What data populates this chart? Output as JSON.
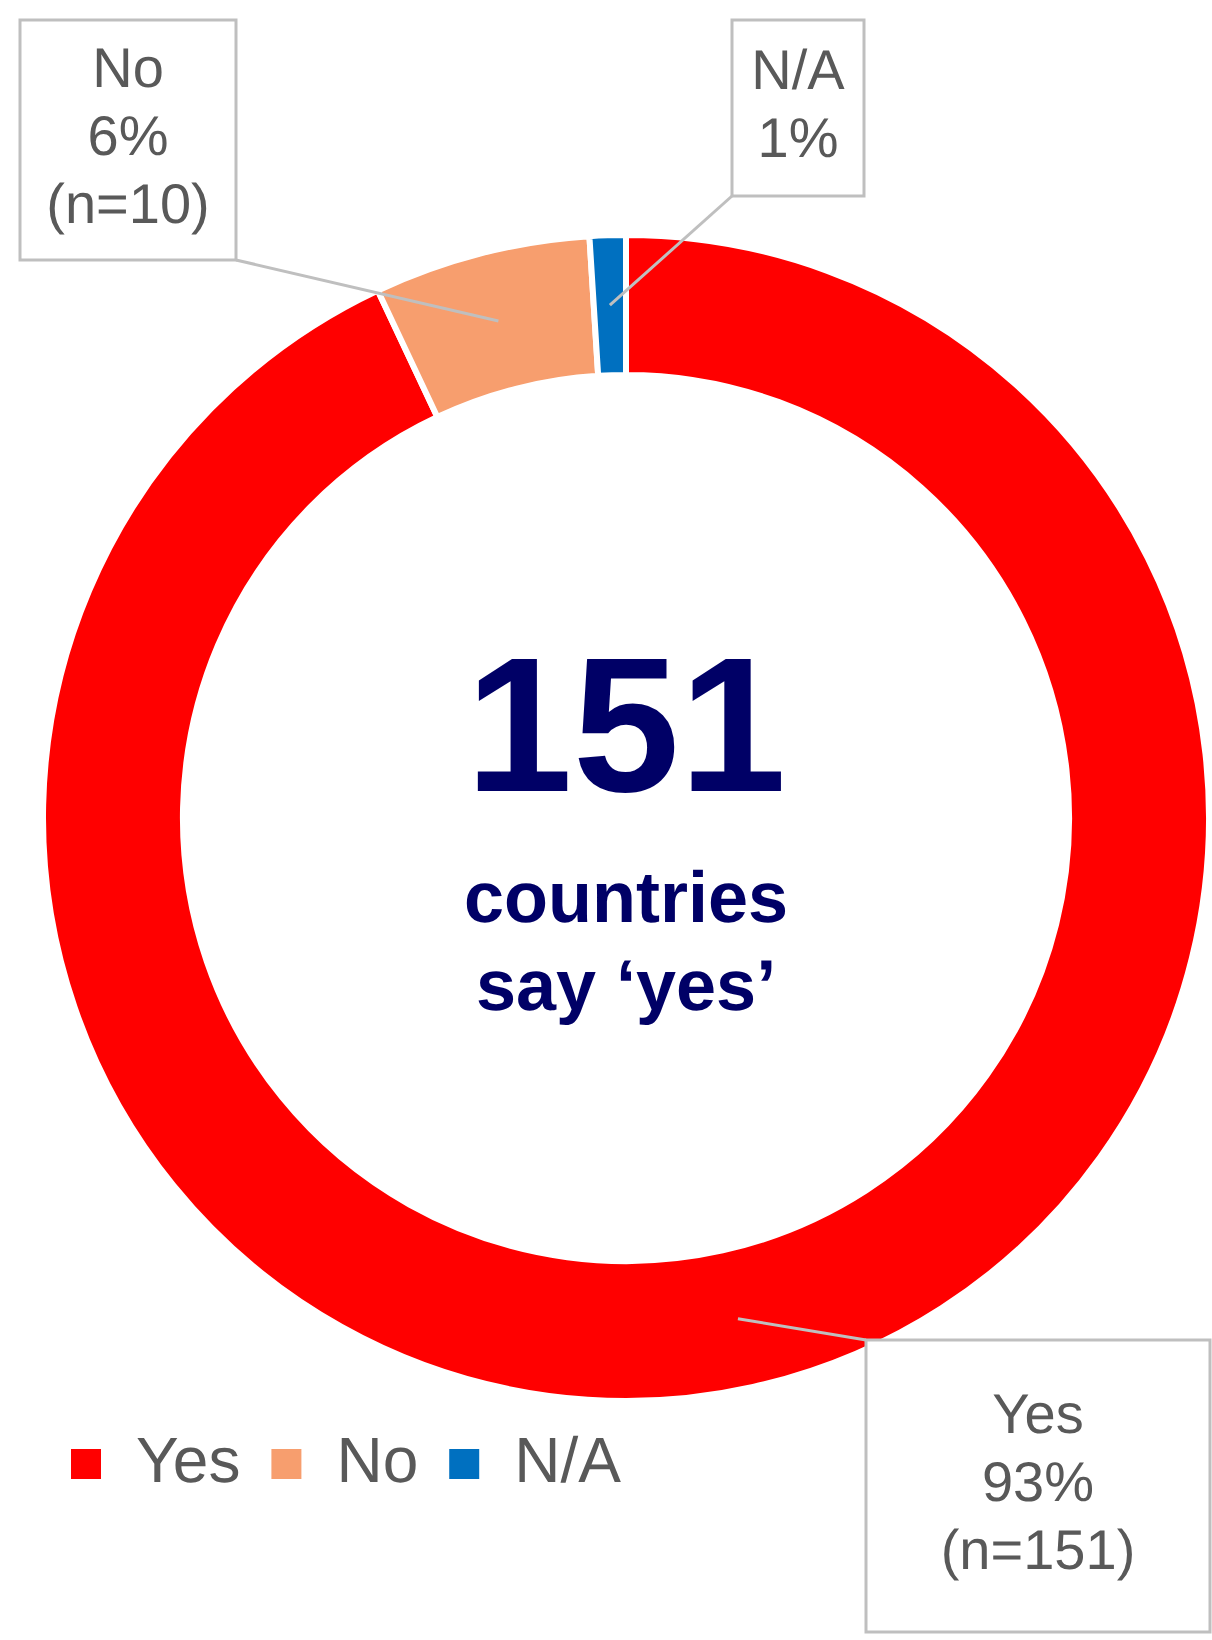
{
  "chart_data": {
    "type": "donut",
    "categories": [
      "Yes",
      "No",
      "N/A"
    ],
    "values": [
      93,
      6,
      1
    ],
    "colors": [
      "#ff0000",
      "#f79e6e",
      "#0070c0"
    ],
    "value_labels": [
      "Yes\n93%\n(n=151)",
      "No\n6%\n(n=10)",
      "N/A\n1%"
    ],
    "annotations": [
      "151",
      "countries\nsay ‘yes’"
    ],
    "legend": "bottom"
  }
}
